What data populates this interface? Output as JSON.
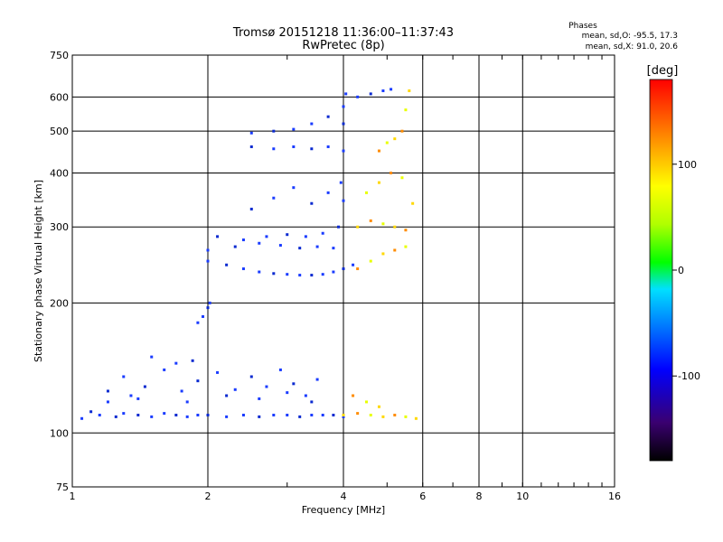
{
  "header": {
    "title": "Tromsø 20151218 11:36:00–11:37:43",
    "subtitle": "RwPretec (8p)"
  },
  "phases_box": {
    "title": "Phases",
    "line1": "mean, sd,O:  -95.5, 17.3",
    "line2": "mean, sd,X:  91.0, 20.6"
  },
  "chart_data": {
    "type": "scatter",
    "title": "Tromsø 20151218 11:36:00–11:37:43",
    "subtitle": "RwPretec (8p)",
    "xlabel": "Frequency [MHz]",
    "ylabel": "Stationary phase Virtual Height [km]",
    "xscale": "log",
    "yscale": "log",
    "xlim": [
      1,
      16
    ],
    "ylim": [
      75,
      750
    ],
    "x_ticks": [
      1,
      2,
      4,
      6,
      8,
      10,
      16
    ],
    "y_ticks": [
      75,
      100,
      200,
      300,
      400,
      500,
      600,
      750
    ],
    "grid": true,
    "colorbar": {
      "label": "[deg]",
      "range": [
        -180,
        180
      ],
      "ticks": [
        -100,
        0,
        100
      ],
      "colors": [
        "#000000",
        "#3a0070",
        "#0000ff",
        "#0080ff",
        "#00e0ff",
        "#00ff00",
        "#b0ff00",
        "#ffff00",
        "#ff8000",
        "#ff0000"
      ]
    },
    "point_colors": {
      "o_mode": "#1a3cff",
      "o_mode_alt": "#0a2ad0",
      "x_mode": "#ffd800",
      "x_mode_alt": "#ff8c00",
      "x_mode_alt2": "#e8ff00",
      "noise": "#ff2020"
    },
    "series": [
      {
        "mode": "O",
        "points": [
          [
            1.05,
            108
          ],
          [
            1.1,
            112
          ],
          [
            1.15,
            110
          ],
          [
            1.2,
            118
          ],
          [
            1.25,
            109
          ],
          [
            1.3,
            111
          ],
          [
            1.35,
            122
          ],
          [
            1.4,
            110
          ],
          [
            1.5,
            109
          ],
          [
            1.6,
            111
          ],
          [
            1.7,
            110
          ],
          [
            1.8,
            109
          ],
          [
            1.9,
            110
          ],
          [
            2.0,
            110
          ],
          [
            2.2,
            109
          ],
          [
            2.4,
            110
          ],
          [
            2.6,
            109
          ],
          [
            2.8,
            110
          ],
          [
            3.0,
            110
          ],
          [
            3.2,
            109
          ],
          [
            3.4,
            110
          ],
          [
            3.6,
            110
          ],
          [
            3.8,
            110
          ],
          [
            4.0,
            109
          ],
          [
            1.3,
            135
          ],
          [
            1.45,
            128
          ],
          [
            1.6,
            140
          ],
          [
            1.75,
            125
          ],
          [
            1.9,
            132
          ],
          [
            2.1,
            138
          ],
          [
            2.3,
            126
          ],
          [
            2.5,
            135
          ],
          [
            2.7,
            128
          ],
          [
            2.9,
            140
          ],
          [
            3.1,
            130
          ],
          [
            3.3,
            122
          ],
          [
            3.5,
            133
          ],
          [
            1.2,
            125
          ],
          [
            1.4,
            120
          ],
          [
            1.8,
            118
          ],
          [
            2.2,
            122
          ],
          [
            2.6,
            120
          ],
          [
            3.0,
            124
          ],
          [
            3.4,
            118
          ],
          [
            1.5,
            150
          ],
          [
            1.7,
            145
          ],
          [
            1.85,
            147
          ],
          [
            1.9,
            180
          ],
          [
            1.95,
            186
          ],
          [
            2.0,
            195
          ],
          [
            2.02,
            200
          ],
          [
            2.0,
            250
          ],
          [
            2.2,
            245
          ],
          [
            2.4,
            240
          ],
          [
            2.6,
            236
          ],
          [
            2.8,
            234
          ],
          [
            3.0,
            233
          ],
          [
            3.2,
            232
          ],
          [
            3.4,
            232
          ],
          [
            3.6,
            233
          ],
          [
            3.8,
            236
          ],
          [
            4.0,
            240
          ],
          [
            4.2,
            245
          ],
          [
            2.0,
            265
          ],
          [
            2.3,
            270
          ],
          [
            2.6,
            275
          ],
          [
            2.9,
            272
          ],
          [
            3.2,
            268
          ],
          [
            3.5,
            270
          ],
          [
            3.8,
            268
          ],
          [
            2.1,
            285
          ],
          [
            2.4,
            280
          ],
          [
            2.7,
            285
          ],
          [
            3.0,
            288
          ],
          [
            3.3,
            285
          ],
          [
            3.6,
            290
          ],
          [
            2.5,
            330
          ],
          [
            2.8,
            350
          ],
          [
            3.1,
            370
          ],
          [
            3.4,
            340
          ],
          [
            3.7,
            360
          ],
          [
            4.0,
            345
          ],
          [
            2.5,
            460
          ],
          [
            2.8,
            455
          ],
          [
            3.1,
            460
          ],
          [
            3.4,
            455
          ],
          [
            3.7,
            460
          ],
          [
            2.5,
            495
          ],
          [
            2.8,
            500
          ],
          [
            3.1,
            505
          ],
          [
            3.4,
            520
          ],
          [
            3.7,
            540
          ],
          [
            4.0,
            570
          ],
          [
            4.3,
            600
          ],
          [
            4.6,
            610
          ],
          [
            4.9,
            620
          ],
          [
            5.1,
            625
          ],
          [
            3.9,
            300
          ],
          [
            3.95,
            380
          ],
          [
            4.0,
            450
          ],
          [
            4.0,
            520
          ],
          [
            4.05,
            610
          ]
        ]
      },
      {
        "mode": "X",
        "points": [
          [
            4.0,
            110
          ],
          [
            4.3,
            111
          ],
          [
            4.6,
            110
          ],
          [
            4.9,
            109
          ],
          [
            5.2,
            110
          ],
          [
            5.5,
            109
          ],
          [
            5.8,
            108
          ],
          [
            4.2,
            122
          ],
          [
            4.5,
            118
          ],
          [
            4.8,
            115
          ],
          [
            4.3,
            240
          ],
          [
            4.6,
            250
          ],
          [
            4.9,
            260
          ],
          [
            5.2,
            265
          ],
          [
            5.5,
            270
          ],
          [
            4.3,
            300
          ],
          [
            4.6,
            310
          ],
          [
            4.9,
            305
          ],
          [
            5.2,
            300
          ],
          [
            5.5,
            295
          ],
          [
            4.5,
            360
          ],
          [
            4.8,
            380
          ],
          [
            5.1,
            400
          ],
          [
            5.4,
            390
          ],
          [
            5.7,
            340
          ],
          [
            4.8,
            450
          ],
          [
            5.0,
            470
          ],
          [
            5.2,
            480
          ],
          [
            5.4,
            500
          ],
          [
            5.5,
            560
          ],
          [
            5.6,
            620
          ]
        ]
      }
    ]
  }
}
